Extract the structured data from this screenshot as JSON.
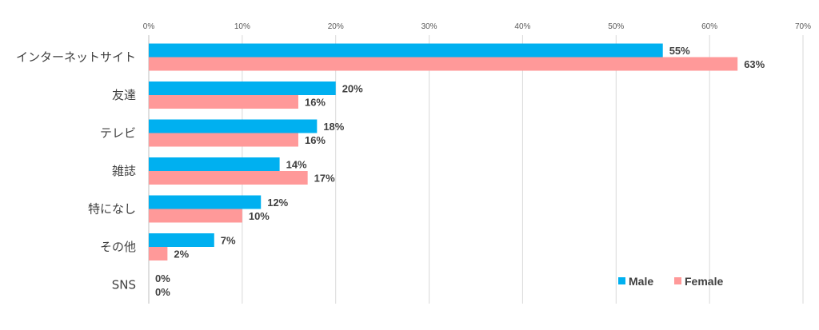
{
  "chart_data": {
    "type": "bar",
    "orientation": "horizontal",
    "categories": [
      "インターネットサイト",
      "友達",
      "テレビ",
      "雑誌",
      "特になし",
      "その他",
      "SNS"
    ],
    "series": [
      {
        "name": "Male",
        "values": [
          55,
          20,
          18,
          14,
          12,
          7,
          0
        ],
        "color": "#00b0f0"
      },
      {
        "name": "Female",
        "values": [
          63,
          16,
          16,
          17,
          10,
          2,
          0
        ],
        "color": "#ff9999"
      }
    ],
    "value_labels": {
      "Male": [
        "55%",
        "20%",
        "18%",
        "14%",
        "12%",
        "7%",
        "0%"
      ],
      "Female": [
        "63%",
        "16%",
        "16%",
        "17%",
        "10%",
        "2%",
        "0%"
      ]
    },
    "xticks": [
      "0%",
      "10%",
      "20%",
      "30%",
      "40%",
      "50%",
      "60%",
      "70%"
    ],
    "xlim": [
      0,
      70
    ],
    "grid": true,
    "legend_position": "bottom-right"
  }
}
